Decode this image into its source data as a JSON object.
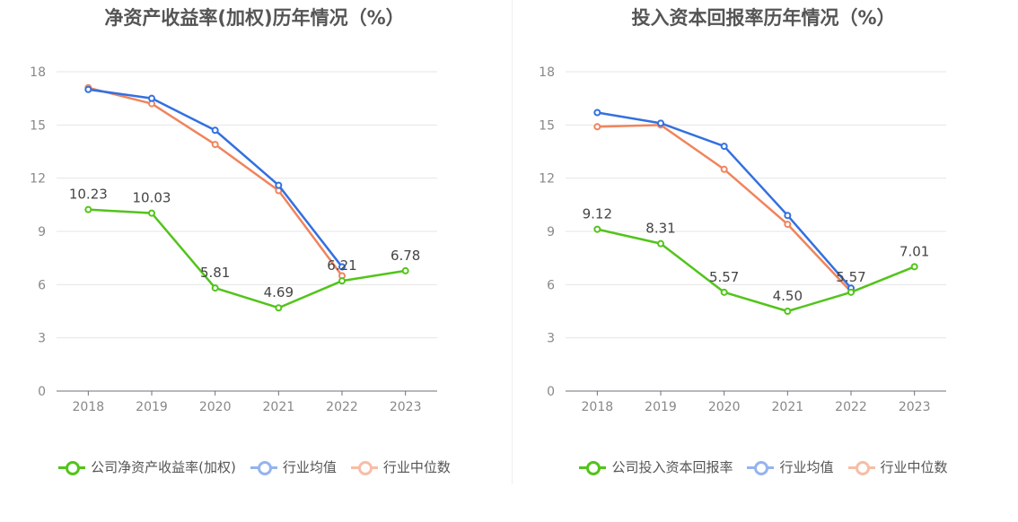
{
  "chart_data": [
    {
      "type": "line",
      "title": "净资产收益率(加权)历年情况（%）",
      "categories": [
        "2018",
        "2019",
        "2020",
        "2021",
        "2022",
        "2023"
      ],
      "ylim": [
        0,
        18
      ],
      "yticks": [
        "0",
        "3",
        "6",
        "9",
        "12",
        "15",
        "18"
      ],
      "grid": true,
      "legend_position": "bottom",
      "series": [
        {
          "name": "公司净资产收益率(加权)",
          "color": "#52c41a",
          "values": [
            10.23,
            10.03,
            5.81,
            4.69,
            6.21,
            6.78
          ],
          "labels": [
            "10.23",
            "10.03",
            "5.81",
            "4.69",
            "6.21",
            "6.78"
          ]
        },
        {
          "name": "行业均值",
          "color": "#3370e0",
          "values": [
            17.0,
            16.5,
            14.7,
            11.6,
            7.0,
            null
          ]
        },
        {
          "name": "行业中位数",
          "color": "#f0845c",
          "values": [
            17.1,
            16.2,
            13.9,
            11.3,
            6.5,
            null
          ]
        }
      ]
    },
    {
      "type": "line",
      "title": "投入资本回报率历年情况（%）",
      "categories": [
        "2018",
        "2019",
        "2020",
        "2021",
        "2022",
        "2023"
      ],
      "ylim": [
        0,
        18
      ],
      "yticks": [
        "0",
        "3",
        "6",
        "9",
        "12",
        "15",
        "18"
      ],
      "grid": true,
      "legend_position": "bottom",
      "series": [
        {
          "name": "公司投入资本回报率",
          "color": "#52c41a",
          "values": [
            9.12,
            8.31,
            5.57,
            4.5,
            5.57,
            7.01
          ],
          "labels": [
            "9.12",
            "8.31",
            "5.57",
            "4.50",
            "5.57",
            "7.01"
          ]
        },
        {
          "name": "行业均值",
          "color": "#3370e0",
          "values": [
            15.7,
            15.1,
            13.8,
            9.9,
            5.8,
            null
          ]
        },
        {
          "name": "行业中位数",
          "color": "#f0845c",
          "values": [
            14.9,
            15.0,
            12.5,
            9.4,
            5.6,
            null
          ]
        }
      ]
    }
  ]
}
